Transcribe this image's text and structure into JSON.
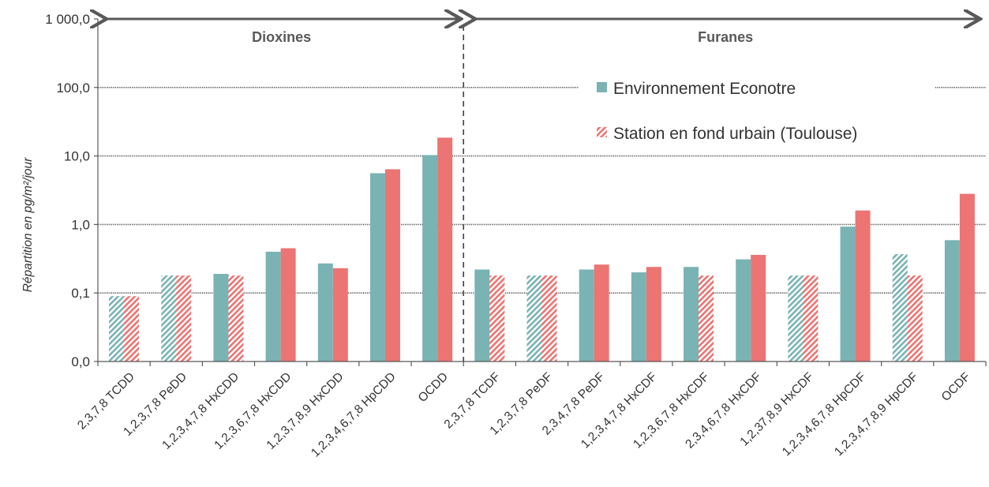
{
  "chart_data": {
    "type": "bar",
    "yscale": "log",
    "ylabel": "Répartition en pg/m²/jour",
    "ylim": [
      0.01,
      1000
    ],
    "yticks": [
      1000,
      100,
      10,
      1,
      0.1,
      0.01
    ],
    "ytick_labels": [
      "1 000,0",
      "100,0",
      "10,0",
      "1,0",
      "0,1",
      "0,0"
    ],
    "grid": true,
    "categories": [
      "2,3,7,8 TCDD",
      "1,2,3,7,8 PeDD",
      "1,2,3,4,7,8 HxCDD",
      "1,2,3,6,7,8 HxCDD",
      "1,2,3,7,8,9 HxCDD",
      "1,2,3,4,6,7,8 HpCDD",
      "OCDD",
      "2,3,7,8 TCDF",
      "1,2,3,7,8 PeDF",
      "2,3,4,7,8 PeDF",
      "1,2,3,4,7,8 HxCDF",
      "1,2,3,6,7,8 HxCDF",
      "2,3,4,6,7,8 HxCDF",
      "1,2,37,8,9 HxCDF",
      "1,2,3,4,6,7,8 HpCDF",
      "1,2,3,4,7,8,9 HpCDF",
      "OCDF"
    ],
    "series": [
      {
        "name": "Environnement Econotre",
        "color": "#7ab3b3",
        "values": [
          0.09,
          0.18,
          0.19,
          0.4,
          0.27,
          5.6,
          10.3,
          0.22,
          0.18,
          0.22,
          0.2,
          0.24,
          0.31,
          0.18,
          0.93,
          0.37,
          0.59
        ],
        "hatched": [
          true,
          true,
          false,
          false,
          false,
          false,
          false,
          false,
          true,
          false,
          false,
          false,
          false,
          true,
          false,
          true,
          false
        ]
      },
      {
        "name": "Station en fond urbain (Toulouse)",
        "color": "#ec7472",
        "values": [
          0.09,
          0.18,
          0.18,
          0.45,
          0.23,
          6.4,
          18.5,
          0.18,
          0.18,
          0.26,
          0.24,
          0.18,
          0.36,
          0.18,
          1.6,
          0.18,
          2.8
        ],
        "hatched": [
          true,
          true,
          true,
          false,
          false,
          false,
          false,
          true,
          true,
          false,
          false,
          true,
          false,
          true,
          false,
          true,
          false
        ]
      }
    ],
    "groups": [
      {
        "label": "Dioxines",
        "from": 0,
        "to": 6
      },
      {
        "label": "Furanes",
        "from": 7,
        "to": 16
      }
    ],
    "legend": {
      "position": "top-right",
      "entries": [
        "Environnement Econotre",
        "Station en fond urbain (Toulouse)"
      ]
    }
  }
}
